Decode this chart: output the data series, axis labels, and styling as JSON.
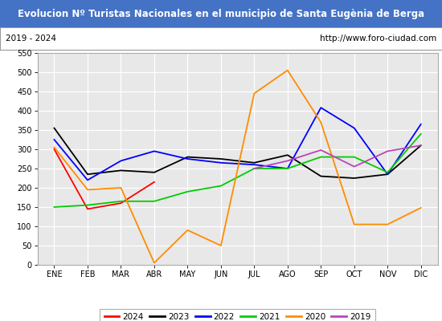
{
  "title": "Evolucion Nº Turistas Nacionales en el municipio de Santa Eugènia de Berga",
  "subtitle_left": "2019 - 2024",
  "subtitle_right": "http://www.foro-ciudad.com",
  "months": [
    "ENE",
    "FEB",
    "MAR",
    "ABR",
    "MAY",
    "JUN",
    "JUL",
    "AGO",
    "SEP",
    "OCT",
    "NOV",
    "DIC"
  ],
  "ylim": [
    0,
    550
  ],
  "yticks": [
    0,
    50,
    100,
    150,
    200,
    250,
    300,
    350,
    400,
    450,
    500,
    550
  ],
  "series": {
    "2024": {
      "color": "#ff0000",
      "values": [
        300,
        145,
        160,
        215,
        null,
        null,
        null,
        null,
        null,
        null,
        null,
        null
      ]
    },
    "2023": {
      "color": "#000000",
      "values": [
        355,
        235,
        245,
        240,
        280,
        275,
        265,
        285,
        230,
        225,
        235,
        310
      ]
    },
    "2022": {
      "color": "#0000ff",
      "values": [
        325,
        220,
        270,
        295,
        275,
        265,
        260,
        250,
        408,
        355,
        235,
        365
      ]
    },
    "2021": {
      "color": "#00cc00",
      "values": [
        150,
        155,
        165,
        165,
        190,
        205,
        250,
        250,
        280,
        280,
        240,
        340
      ]
    },
    "2020": {
      "color": "#ff8c00",
      "values": [
        305,
        195,
        200,
        5,
        90,
        50,
        445,
        505,
        370,
        105,
        105,
        148
      ]
    },
    "2019": {
      "color": "#bb44bb",
      "values": [
        null,
        null,
        null,
        null,
        null,
        null,
        250,
        270,
        298,
        255,
        295,
        310
      ]
    }
  },
  "title_bg_color": "#4472c4",
  "title_text_color": "#ffffff",
  "plot_bg_color": "#e8e8e8",
  "grid_color": "#ffffff",
  "legend_order": [
    "2024",
    "2023",
    "2022",
    "2021",
    "2020",
    "2019"
  ],
  "fig_width": 5.5,
  "fig_height": 4.0,
  "dpi": 100
}
